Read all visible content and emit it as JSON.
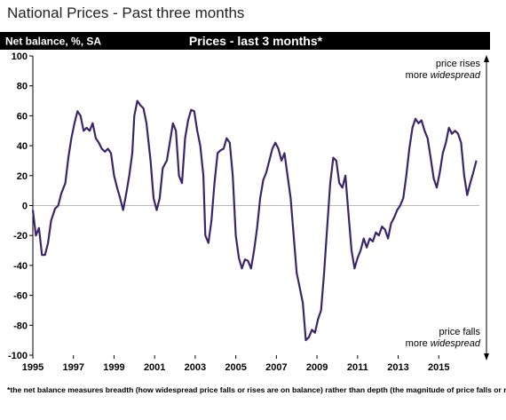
{
  "chart_data": {
    "type": "line",
    "title": "National Prices - Past three months",
    "header_left": "Net balance, %, SA",
    "subtitle": "Prices - last 3 months*",
    "annotation_top": [
      "price rises",
      "more",
      "widespread"
    ],
    "annotation_bottom": [
      "price falls",
      "more",
      "widespread"
    ],
    "footnote": "*the net balance measures breadth (how widespread price falls or rises are on balance)  rather than depth (the magnitude of price falls or rises).",
    "xlim": [
      1995,
      2017
    ],
    "xticks": [
      1995,
      1997,
      1999,
      2001,
      2003,
      2005,
      2007,
      2009,
      2011,
      2013,
      2015
    ],
    "ylim": [
      -100,
      100
    ],
    "yticks": [
      -100,
      -80,
      -60,
      -40,
      -20,
      0,
      20,
      40,
      60,
      80,
      100
    ],
    "series": [
      {
        "name": "Prices - last 3 months",
        "color": "#3b2469",
        "x": [
          1995.0,
          1995.15,
          1995.3,
          1995.45,
          1995.6,
          1995.75,
          1995.9,
          1996.1,
          1996.25,
          1996.4,
          1996.6,
          1996.75,
          1996.9,
          1997.05,
          1997.2,
          1997.35,
          1997.5,
          1997.65,
          1997.8,
          1997.95,
          1998.1,
          1998.25,
          1998.4,
          1998.55,
          1998.7,
          1998.85,
          1999.0,
          1999.15,
          1999.3,
          1999.45,
          1999.6,
          1999.75,
          1999.9,
          2000.0,
          2000.15,
          2000.3,
          2000.45,
          2000.6,
          2000.8,
          2000.95,
          2001.1,
          2001.25,
          2001.4,
          2001.6,
          2001.75,
          2001.9,
          2002.05,
          2002.2,
          2002.35,
          2002.5,
          2002.65,
          2002.8,
          2002.95,
          2003.1,
          2003.25,
          2003.4,
          2003.5,
          2003.65,
          2003.8,
          2003.95,
          2004.1,
          2004.25,
          2004.4,
          2004.55,
          2004.7,
          2004.85,
          2005.0,
          2005.15,
          2005.3,
          2005.45,
          2005.6,
          2005.75,
          2005.9,
          2006.05,
          2006.2,
          2006.35,
          2006.5,
          2006.65,
          2006.8,
          2006.95,
          2007.1,
          2007.25,
          2007.4,
          2007.55,
          2007.7,
          2007.85,
          2008.0,
          2008.15,
          2008.3,
          2008.45,
          2008.6,
          2008.75,
          2008.9,
          2009.05,
          2009.2,
          2009.35,
          2009.5,
          2009.65,
          2009.8,
          2009.95,
          2010.1,
          2010.25,
          2010.4,
          2010.55,
          2010.7,
          2010.85,
          2011.0,
          2011.15,
          2011.3,
          2011.45,
          2011.6,
          2011.75,
          2011.9,
          2012.05,
          2012.2,
          2012.35,
          2012.5,
          2012.65,
          2012.8,
          2012.95,
          2013.1,
          2013.25,
          2013.4,
          2013.55,
          2013.7,
          2013.85,
          2014.0,
          2014.15,
          2014.3,
          2014.45,
          2014.6,
          2014.75,
          2014.9,
          2015.05,
          2015.2,
          2015.35,
          2015.5,
          2015.65,
          2015.8,
          2015.95,
          2016.1,
          2016.25,
          2016.4,
          2016.55,
          2016.7,
          2016.85
        ],
        "values": [
          -3,
          -20,
          -15,
          -33,
          -33,
          -25,
          -10,
          -2,
          0,
          8,
          15,
          32,
          45,
          55,
          63,
          60,
          50,
          52,
          50,
          55,
          45,
          42,
          38,
          36,
          38,
          35,
          20,
          12,
          5,
          -3,
          8,
          20,
          35,
          60,
          70,
          67,
          65,
          55,
          30,
          5,
          -3,
          5,
          25,
          30,
          42,
          55,
          50,
          20,
          15,
          45,
          57,
          64,
          63,
          50,
          40,
          20,
          -20,
          -25,
          -10,
          15,
          35,
          37,
          38,
          45,
          42,
          20,
          -20,
          -35,
          -42,
          -36,
          -37,
          -42,
          -30,
          -15,
          5,
          17,
          22,
          30,
          38,
          42,
          38,
          30,
          35,
          20,
          5,
          -20,
          -45,
          -55,
          -65,
          -90,
          -88,
          -83,
          -85,
          -76,
          -70,
          -45,
          -15,
          15,
          32,
          30,
          15,
          12,
          20,
          -5,
          -30,
          -42,
          -35,
          -30,
          -22,
          -28,
          -22,
          -24,
          -18,
          -20,
          -14,
          -16,
          -22,
          -12,
          -8,
          -3,
          0,
          5,
          20,
          38,
          52,
          58,
          55,
          57,
          50,
          45,
          32,
          18,
          12,
          22,
          35,
          42,
          52,
          48,
          50,
          48,
          42,
          20,
          7,
          15,
          22,
          30
        ]
      }
    ]
  }
}
